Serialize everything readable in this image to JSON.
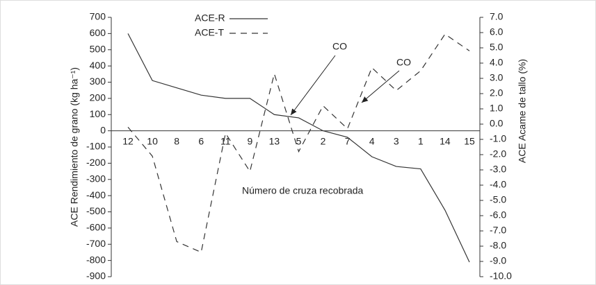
{
  "chart_data": {
    "type": "line",
    "xlabel": "Número de cruza recobrada",
    "ylabel": "ACE  Rendimiento de grano (kg ha⁻¹)",
    "y2label": "ACE  Acame de tallo (%)",
    "categories": [
      "12",
      "10",
      "8",
      "6",
      "11",
      "9",
      "13",
      "5",
      "2",
      "7",
      "4",
      "3",
      "1",
      "14",
      "15"
    ],
    "series": [
      {
        "name": "ACE-R",
        "color": "#333333",
        "dash": false,
        "values": [
          600,
          310,
          265,
          220,
          200,
          200,
          100,
          80,
          0,
          -40,
          -160,
          -220,
          -235,
          -490,
          -810
        ]
      },
      {
        "name": "ACE-T",
        "color": "#333333",
        "dash": true,
        "axis": "y2",
        "values": [
          -0.2,
          -2.1,
          -7.7,
          -8.4,
          -0.6,
          -3.1,
          3.3,
          -1.8,
          1.2,
          -0.3,
          3.7,
          2.2,
          3.5,
          5.9,
          4.8
        ]
      }
    ],
    "ylim": [
      -900,
      700
    ],
    "yticks": [
      -900,
      -800,
      -700,
      -600,
      -500,
      -400,
      -300,
      -200,
      -100,
      0,
      100,
      200,
      300,
      400,
      500,
      600,
      700
    ],
    "y2lim": [
      -10,
      7
    ],
    "y2ticks": [
      {
        "value": -10,
        "label": "-10.0"
      },
      {
        "value": -9,
        "label": "-9.0"
      },
      {
        "value": -8,
        "label": "-8.0"
      },
      {
        "value": -7,
        "label": "-7.0"
      },
      {
        "value": -6,
        "label": "-6.0"
      },
      {
        "value": -5,
        "label": "-5.0"
      },
      {
        "value": -4,
        "label": "-4.0"
      },
      {
        "value": -3,
        "label": "-3.0"
      },
      {
        "value": -2,
        "label": "-2.0"
      },
      {
        "value": -1,
        "label": "-1.0"
      },
      {
        "value": 0,
        "label": "0.0"
      },
      {
        "value": 1,
        "label": "1.0"
      },
      {
        "value": 2,
        "label": "2.0"
      },
      {
        "value": 3,
        "label": "3.0"
      },
      {
        "value": 4,
        "label": "4.0"
      },
      {
        "value": 5,
        "label": "5.0"
      },
      {
        "value": 6,
        "label": "6.0"
      },
      {
        "value": 7,
        "label": "7.0"
      }
    ],
    "annotations": [
      {
        "text": "CO"
      },
      {
        "text": "CO"
      }
    ]
  }
}
